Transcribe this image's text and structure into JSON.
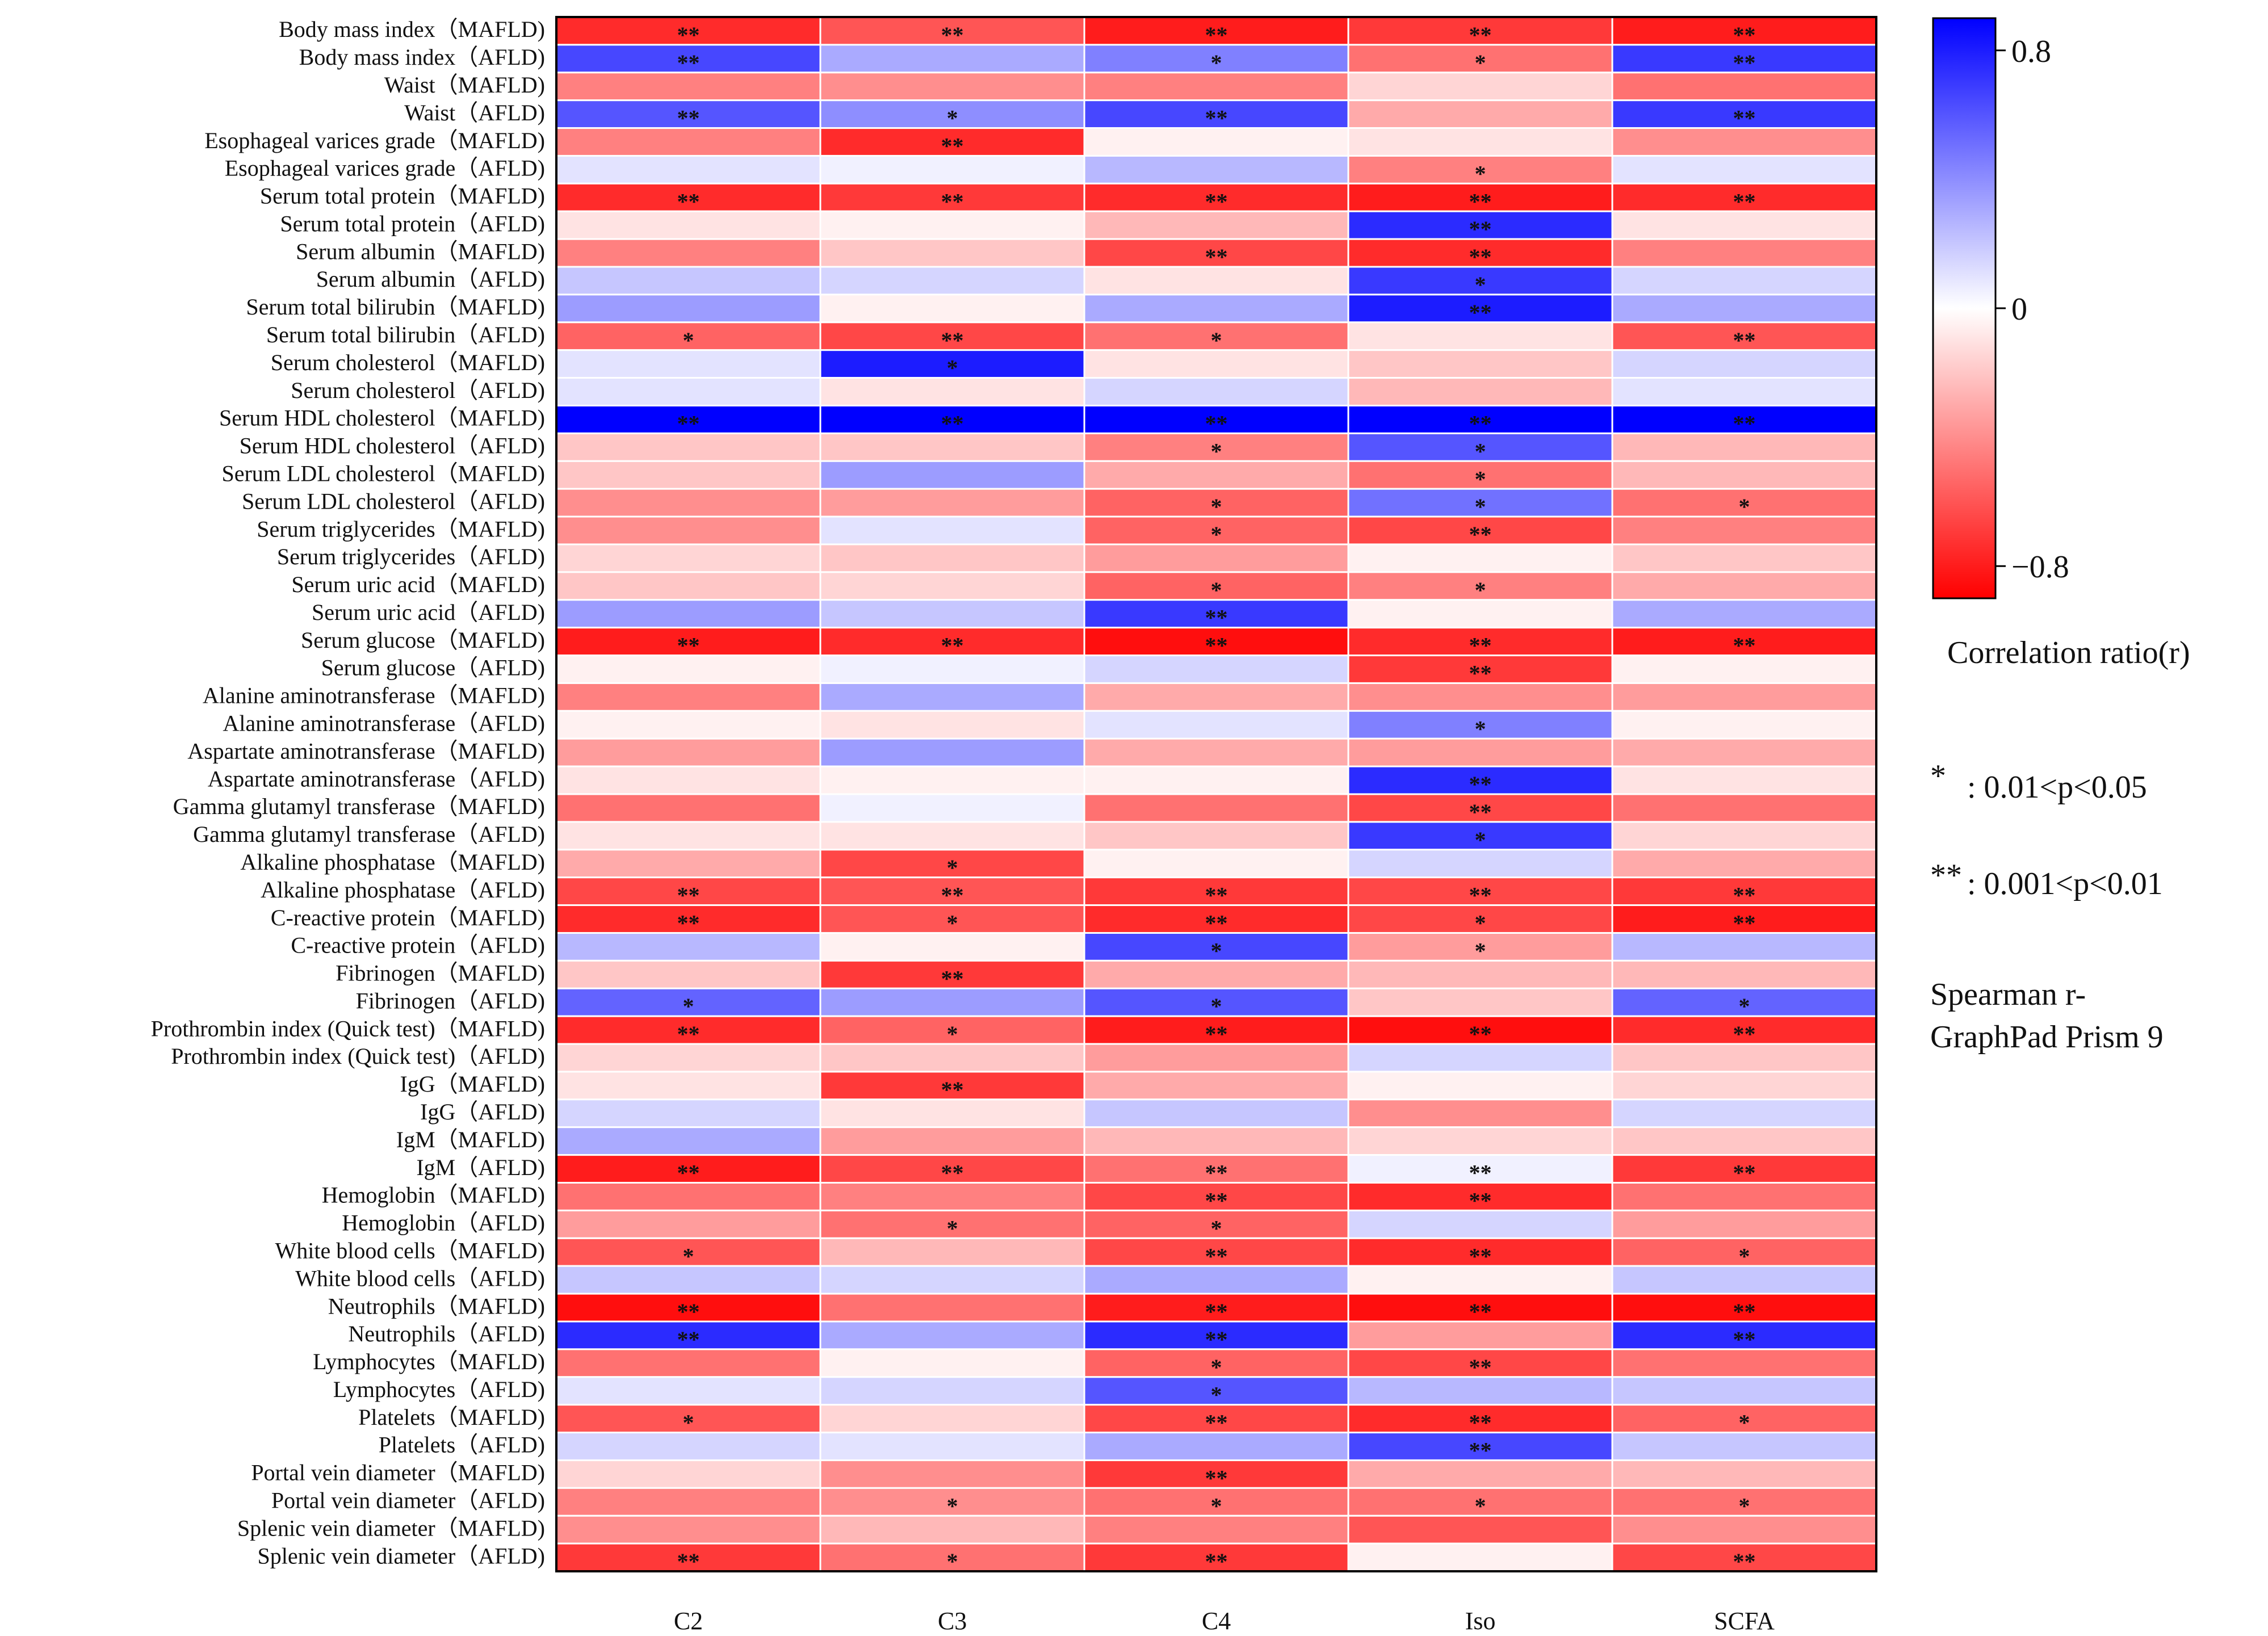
{
  "chart_data": {
    "type": "heatmap",
    "title": "",
    "columns": [
      "C2",
      "C3",
      "C4",
      "Iso",
      "SCFA"
    ],
    "rows": [
      {
        "label": "Body mass index（MAFLD)",
        "values": [
          -0.75,
          -0.6,
          -0.8,
          -0.7,
          -0.8
        ],
        "stars": [
          "**",
          "**",
          "**",
          "**",
          "**"
        ]
      },
      {
        "label": "Body mass index（AFLD)",
        "values": [
          0.65,
          0.3,
          0.45,
          -0.5,
          0.7
        ],
        "stars": [
          "**",
          "",
          "*",
          "*",
          "**"
        ]
      },
      {
        "label": "Waist（MAFLD)",
        "values": [
          -0.45,
          -0.4,
          -0.45,
          -0.15,
          -0.5
        ],
        "stars": [
          "",
          "",
          "",
          "",
          ""
        ]
      },
      {
        "label": "Waist（AFLD)",
        "values": [
          0.6,
          0.4,
          0.65,
          -0.3,
          0.7
        ],
        "stars": [
          "**",
          "*",
          "**",
          "",
          "**"
        ]
      },
      {
        "label": "Esophageal varices grade（MAFLD)",
        "values": [
          -0.45,
          -0.75,
          -0.05,
          -0.1,
          -0.4
        ],
        "stars": [
          "",
          "**",
          "",
          "",
          ""
        ]
      },
      {
        "label": "Esophageal varices grade（AFLD)",
        "values": [
          0.1,
          0.05,
          0.25,
          -0.45,
          0.1
        ],
        "stars": [
          "",
          "",
          "",
          "*",
          ""
        ]
      },
      {
        "label": "Serum total protein（MAFLD)",
        "values": [
          -0.75,
          -0.7,
          -0.75,
          -0.8,
          -0.75
        ],
        "stars": [
          "**",
          "**",
          "**",
          "**",
          "**"
        ]
      },
      {
        "label": "Serum total protein（AFLD)",
        "values": [
          -0.1,
          -0.05,
          -0.25,
          0.75,
          -0.1
        ],
        "stars": [
          "",
          "",
          "",
          "**",
          ""
        ]
      },
      {
        "label": "Serum albumin（MAFLD)",
        "values": [
          -0.45,
          -0.2,
          -0.65,
          -0.75,
          -0.45
        ],
        "stars": [
          "",
          "",
          "**",
          "**",
          ""
        ]
      },
      {
        "label": "Serum albumin（AFLD)",
        "values": [
          0.2,
          0.15,
          -0.1,
          0.7,
          0.15
        ],
        "stars": [
          "",
          "",
          "",
          "*",
          ""
        ]
      },
      {
        "label": "Serum total bilirubin（MAFLD)",
        "values": [
          0.35,
          -0.05,
          0.3,
          0.8,
          0.3
        ],
        "stars": [
          "",
          "",
          "",
          "**",
          ""
        ]
      },
      {
        "label": "Serum total bilirubin（AFLD)",
        "values": [
          -0.55,
          -0.65,
          -0.5,
          -0.1,
          -0.6
        ],
        "stars": [
          "*",
          "**",
          "*",
          "",
          "**"
        ]
      },
      {
        "label": "Serum cholesterol（MAFLD)",
        "values": [
          0.1,
          0.8,
          -0.1,
          -0.2,
          0.15
        ],
        "stars": [
          "",
          "*",
          "",
          "",
          ""
        ]
      },
      {
        "label": "Serum cholesterol（AFLD)",
        "values": [
          0.1,
          -0.1,
          0.15,
          -0.25,
          0.1
        ],
        "stars": [
          "",
          "",
          "",
          "",
          ""
        ]
      },
      {
        "label": "Serum HDL cholesterol（MAFLD)",
        "values": [
          0.9,
          0.9,
          0.9,
          0.9,
          0.9
        ],
        "stars": [
          "**",
          "**",
          "**",
          "**",
          "**"
        ]
      },
      {
        "label": "Serum HDL cholesterol（AFLD)",
        "values": [
          -0.2,
          -0.2,
          -0.45,
          0.6,
          -0.25
        ],
        "stars": [
          "",
          "",
          "*",
          "*",
          ""
        ]
      },
      {
        "label": "Serum LDL cholesterol（MAFLD)",
        "values": [
          -0.2,
          0.35,
          -0.3,
          -0.5,
          -0.25
        ],
        "stars": [
          "",
          "",
          "",
          "*",
          ""
        ]
      },
      {
        "label": "Serum LDL cholesterol（AFLD)",
        "values": [
          -0.4,
          -0.35,
          -0.55,
          0.5,
          -0.5
        ],
        "stars": [
          "",
          "",
          "*",
          "*",
          "*"
        ]
      },
      {
        "label": "Serum triglycerides（MAFLD)",
        "values": [
          -0.4,
          0.1,
          -0.55,
          -0.65,
          -0.45
        ],
        "stars": [
          "",
          "",
          "*",
          "**",
          ""
        ]
      },
      {
        "label": "Serum triglycerides（AFLD)",
        "values": [
          -0.15,
          -0.2,
          -0.35,
          -0.05,
          -0.2
        ],
        "stars": [
          "",
          "",
          "",
          "",
          ""
        ]
      },
      {
        "label": "Serum uric acid（MAFLD)",
        "values": [
          -0.2,
          -0.15,
          -0.55,
          -0.45,
          -0.3
        ],
        "stars": [
          "",
          "",
          "*",
          "*",
          ""
        ]
      },
      {
        "label": "Serum uric acid（AFLD)",
        "values": [
          0.35,
          0.2,
          0.7,
          -0.05,
          0.3
        ],
        "stars": [
          "",
          "",
          "**",
          "",
          ""
        ]
      },
      {
        "label": "Serum glucose（MAFLD)",
        "values": [
          -0.8,
          -0.75,
          -0.85,
          -0.75,
          -0.8
        ],
        "stars": [
          "**",
          "**",
          "**",
          "**",
          "**"
        ]
      },
      {
        "label": "Serum glucose（AFLD)",
        "values": [
          -0.05,
          0.05,
          0.15,
          -0.7,
          -0.05
        ],
        "stars": [
          "",
          "",
          "",
          "**",
          ""
        ]
      },
      {
        "label": "Alanine aminotransferase（MAFLD)",
        "values": [
          -0.45,
          0.3,
          -0.3,
          -0.4,
          -0.35
        ],
        "stars": [
          "",
          "",
          "",
          "",
          ""
        ]
      },
      {
        "label": "Alanine aminotransferase（AFLD)",
        "values": [
          -0.05,
          -0.1,
          0.1,
          0.45,
          -0.05
        ],
        "stars": [
          "",
          "",
          "",
          "*",
          ""
        ]
      },
      {
        "label": "Aspartate aminotransferase（MAFLD)",
        "values": [
          -0.35,
          0.35,
          -0.3,
          -0.35,
          -0.3
        ],
        "stars": [
          "",
          "",
          "",
          "",
          ""
        ]
      },
      {
        "label": "Aspartate aminotransferase（AFLD)",
        "values": [
          -0.1,
          -0.05,
          -0.05,
          0.75,
          -0.1
        ],
        "stars": [
          "",
          "",
          "",
          "**",
          ""
        ]
      },
      {
        "label": "Gamma glutamyl transferase（MAFLD)",
        "values": [
          -0.5,
          0.05,
          -0.5,
          -0.65,
          -0.5
        ],
        "stars": [
          "",
          "",
          "",
          "**",
          ""
        ]
      },
      {
        "label": "Gamma glutamyl transferase（AFLD)",
        "values": [
          -0.1,
          -0.1,
          -0.2,
          0.7,
          -0.15
        ],
        "stars": [
          "",
          "",
          "",
          "*",
          ""
        ]
      },
      {
        "label": "Alkaline phosphatase（MAFLD)",
        "values": [
          -0.3,
          -0.65,
          -0.05,
          0.15,
          -0.3
        ],
        "stars": [
          "",
          "*",
          "",
          "",
          ""
        ]
      },
      {
        "label": "Alkaline phosphatase（AFLD)",
        "values": [
          -0.65,
          -0.6,
          -0.7,
          -0.65,
          -0.7
        ],
        "stars": [
          "**",
          "**",
          "**",
          "**",
          "**"
        ]
      },
      {
        "label": "C-reactive protein（MAFLD)",
        "values": [
          -0.75,
          -0.6,
          -0.75,
          -0.65,
          -0.8
        ],
        "stars": [
          "**",
          "*",
          "**",
          "*",
          "**"
        ]
      },
      {
        "label": "C-reactive protein（AFLD)",
        "values": [
          0.25,
          -0.05,
          0.65,
          -0.35,
          0.25
        ],
        "stars": [
          "",
          "",
          "*",
          "*",
          ""
        ]
      },
      {
        "label": "Fibrinogen（MAFLD)",
        "values": [
          -0.2,
          -0.7,
          -0.3,
          -0.25,
          -0.25
        ],
        "stars": [
          "",
          "**",
          "",
          "",
          ""
        ]
      },
      {
        "label": "Fibrinogen（AFLD)",
        "values": [
          0.55,
          0.35,
          0.6,
          -0.2,
          0.55
        ],
        "stars": [
          "*",
          "",
          "*",
          "",
          "*"
        ]
      },
      {
        "label": "Prothrombin index (Quick test)（MAFLD)",
        "values": [
          -0.75,
          -0.55,
          -0.8,
          -0.85,
          -0.75
        ],
        "stars": [
          "**",
          "*",
          "**",
          "**",
          "**"
        ]
      },
      {
        "label": "Prothrombin index (Quick test)（AFLD)",
        "values": [
          -0.15,
          -0.2,
          -0.35,
          0.15,
          -0.2
        ],
        "stars": [
          "",
          "",
          "",
          "",
          ""
        ]
      },
      {
        "label": "IgG（MAFLD)",
        "values": [
          -0.1,
          -0.7,
          -0.3,
          -0.05,
          -0.15
        ],
        "stars": [
          "",
          "**",
          "",
          "",
          ""
        ]
      },
      {
        "label": "IgG（AFLD)",
        "values": [
          0.15,
          -0.1,
          0.2,
          -0.4,
          0.15
        ],
        "stars": [
          "",
          "",
          "",
          "",
          ""
        ]
      },
      {
        "label": "IgM（MAFLD)",
        "values": [
          0.3,
          -0.35,
          -0.25,
          -0.15,
          -0.2
        ],
        "stars": [
          "",
          "",
          "",
          "",
          ""
        ]
      },
      {
        "label": "IgM（AFLD)",
        "values": [
          -0.8,
          -0.65,
          -0.5,
          0.05,
          -0.7
        ],
        "stars": [
          "**",
          "**",
          "**",
          "**",
          "**"
        ]
      },
      {
        "label": "Hemoglobin（MAFLD)",
        "values": [
          -0.5,
          -0.45,
          -0.65,
          -0.75,
          -0.5
        ],
        "stars": [
          "",
          "",
          "**",
          "**",
          ""
        ]
      },
      {
        "label": "Hemoglobin（AFLD)",
        "values": [
          -0.35,
          -0.5,
          -0.55,
          0.15,
          -0.35
        ],
        "stars": [
          "",
          "*",
          "*",
          "",
          ""
        ]
      },
      {
        "label": "White blood cells（MAFLD)",
        "values": [
          -0.6,
          -0.25,
          -0.65,
          -0.75,
          -0.55
        ],
        "stars": [
          "*",
          "",
          "**",
          "**",
          "*"
        ]
      },
      {
        "label": "White blood cells（AFLD)",
        "values": [
          0.2,
          0.15,
          0.3,
          -0.05,
          0.2
        ],
        "stars": [
          "",
          "",
          "",
          "",
          ""
        ]
      },
      {
        "label": "Neutrophils（MAFLD)",
        "values": [
          -0.85,
          -0.5,
          -0.8,
          -0.85,
          -0.85
        ],
        "stars": [
          "**",
          "",
          "**",
          "**",
          "**"
        ]
      },
      {
        "label": "Neutrophils（AFLD)",
        "values": [
          0.75,
          0.3,
          0.75,
          -0.35,
          0.75
        ],
        "stars": [
          "**",
          "",
          "**",
          "",
          "**"
        ]
      },
      {
        "label": "Lymphocytes（MAFLD)",
        "values": [
          -0.5,
          -0.05,
          -0.55,
          -0.65,
          -0.5
        ],
        "stars": [
          "",
          "",
          "*",
          "**",
          ""
        ]
      },
      {
        "label": "Lymphocytes（AFLD)",
        "values": [
          0.1,
          0.15,
          0.6,
          0.25,
          0.2
        ],
        "stars": [
          "",
          "",
          "*",
          "",
          ""
        ]
      },
      {
        "label": "Platelets（MAFLD)",
        "values": [
          -0.6,
          -0.15,
          -0.65,
          -0.75,
          -0.55
        ],
        "stars": [
          "*",
          "",
          "**",
          "**",
          "*"
        ]
      },
      {
        "label": "Platelets（AFLD)",
        "values": [
          0.15,
          0.1,
          0.3,
          0.65,
          0.2
        ],
        "stars": [
          "",
          "",
          "",
          "**",
          ""
        ]
      },
      {
        "label": "Portal vein diameter（MAFLD)",
        "values": [
          -0.15,
          -0.4,
          -0.7,
          -0.3,
          -0.25
        ],
        "stars": [
          "",
          "",
          "**",
          "",
          ""
        ]
      },
      {
        "label": "Portal vein diameter（AFLD)",
        "values": [
          -0.45,
          -0.4,
          -0.5,
          -0.5,
          -0.5
        ],
        "stars": [
          "",
          "*",
          "*",
          "*",
          "*"
        ]
      },
      {
        "label": "Splenic vein diameter（MAFLD)",
        "values": [
          -0.4,
          -0.25,
          -0.45,
          -0.6,
          -0.4
        ],
        "stars": [
          "",
          "",
          "",
          "",
          ""
        ]
      },
      {
        "label": "Splenic vein diameter（AFLD)",
        "values": [
          -0.7,
          -0.5,
          -0.7,
          -0.05,
          -0.65
        ],
        "stars": [
          "**",
          "*",
          "**",
          "",
          "**"
        ]
      }
    ],
    "colorbar": {
      "min": -0.9,
      "max": 0.9,
      "ticks": [
        0.8,
        0,
        -0.8
      ],
      "tick_labels": [
        "0.8",
        "0",
        "−0.8"
      ],
      "colors": {
        "negative": "#ff0000",
        "zero": "#ffffff",
        "positive": "#0000ff"
      }
    },
    "legend": {
      "colorbar_title": "Correlation ratio(r)",
      "sig1_marker": "*",
      "sig1_text": ":  0.01<p<0.05",
      "sig2_marker": "**",
      "sig2_text": ":   0.001<p<0.01",
      "method_line1": "Spearman r-",
      "method_line2": "GraphPad Prism 9"
    }
  }
}
